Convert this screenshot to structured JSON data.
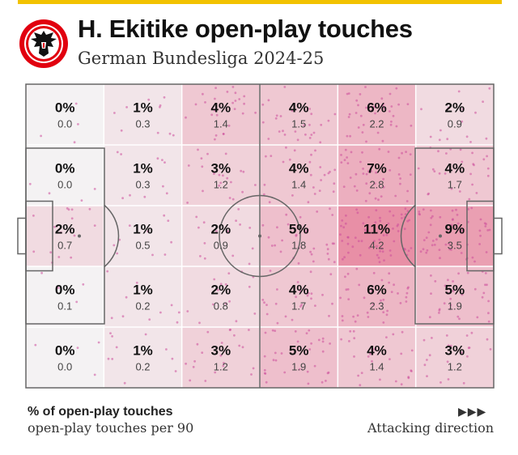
{
  "header": {
    "title": "H. Ekitike open-play touches",
    "subtitle": "German Bundesliga 2024-25"
  },
  "crest": {
    "icon": "eagle-crest-icon",
    "colors": {
      "ring": "#e1000f",
      "eagle": "#111111"
    }
  },
  "legend": {
    "primary": "% of open-play touches",
    "secondary": "open-play touches per 90"
  },
  "direction": {
    "arrows": "▶▶▶",
    "label": "Attacking direction"
  },
  "colors": {
    "accent_bar": "#f2c200",
    "heat_low": "#f4f2f3",
    "heat_high": "#e88fa6",
    "dots": "#cc4d9a",
    "lines": "#666666"
  },
  "chart_data": {
    "type": "heatmap",
    "title": "H. Ekitike open-play touches",
    "subtitle": "German Bundesliga 2024-25",
    "columns": 6,
    "rows": 5,
    "attacking_direction": "left-to-right",
    "legend_placement": "bottom-left",
    "cells": [
      [
        {
          "pct": "0%",
          "p90": "0.0",
          "v": 0
        },
        {
          "pct": "1%",
          "p90": "0.3",
          "v": 1
        },
        {
          "pct": "4%",
          "p90": "1.4",
          "v": 4
        },
        {
          "pct": "4%",
          "p90": "1.5",
          "v": 4
        },
        {
          "pct": "6%",
          "p90": "2.2",
          "v": 6
        },
        {
          "pct": "2%",
          "p90": "0.9",
          "v": 2
        }
      ],
      [
        {
          "pct": "0%",
          "p90": "0.0",
          "v": 0
        },
        {
          "pct": "1%",
          "p90": "0.3",
          "v": 1
        },
        {
          "pct": "3%",
          "p90": "1.2",
          "v": 3
        },
        {
          "pct": "4%",
          "p90": "1.4",
          "v": 4
        },
        {
          "pct": "7%",
          "p90": "2.8",
          "v": 7
        },
        {
          "pct": "4%",
          "p90": "1.7",
          "v": 4
        }
      ],
      [
        {
          "pct": "2%",
          "p90": "0.7",
          "v": 2
        },
        {
          "pct": "1%",
          "p90": "0.5",
          "v": 1
        },
        {
          "pct": "2%",
          "p90": "0.9",
          "v": 2
        },
        {
          "pct": "5%",
          "p90": "1.8",
          "v": 5
        },
        {
          "pct": "11%",
          "p90": "4.2",
          "v": 11
        },
        {
          "pct": "9%",
          "p90": "3.5",
          "v": 9
        }
      ],
      [
        {
          "pct": "0%",
          "p90": "0.1",
          "v": 0
        },
        {
          "pct": "1%",
          "p90": "0.2",
          "v": 1
        },
        {
          "pct": "2%",
          "p90": "0.8",
          "v": 2
        },
        {
          "pct": "4%",
          "p90": "1.7",
          "v": 4
        },
        {
          "pct": "6%",
          "p90": "2.3",
          "v": 6
        },
        {
          "pct": "5%",
          "p90": "1.9",
          "v": 5
        }
      ],
      [
        {
          "pct": "0%",
          "p90": "0.0",
          "v": 0
        },
        {
          "pct": "1%",
          "p90": "0.2",
          "v": 1
        },
        {
          "pct": "3%",
          "p90": "1.2",
          "v": 3
        },
        {
          "pct": "5%",
          "p90": "1.9",
          "v": 5
        },
        {
          "pct": "4%",
          "p90": "1.4",
          "v": 4
        },
        {
          "pct": "3%",
          "p90": "1.2",
          "v": 3
        }
      ]
    ]
  }
}
